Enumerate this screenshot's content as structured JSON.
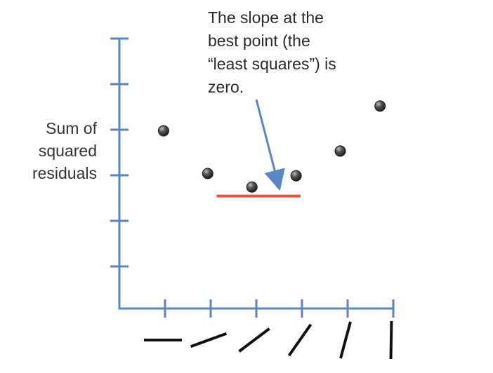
{
  "chart_data": {
    "type": "scatter",
    "title": "",
    "xlabel": "",
    "ylabel": [
      "Sum of",
      "squared",
      "residuals"
    ],
    "x_ticks": 6,
    "y_ticks": 6,
    "grid": false,
    "legend": "none",
    "xlim": [
      0,
      6.2
    ],
    "ylim": [
      0,
      6
    ],
    "points": [
      {
        "x": 1.0,
        "y": 3.95
      },
      {
        "x": 2.0,
        "y": 3.0
      },
      {
        "x": 3.0,
        "y": 2.7
      },
      {
        "x": 4.0,
        "y": 2.95
      },
      {
        "x": 5.0,
        "y": 3.5
      },
      {
        "x": 5.9,
        "y": 4.5
      }
    ],
    "slope_icons_deg": [
      0,
      20,
      37,
      55,
      75,
      89
    ],
    "best_line": {
      "x0": 2.2,
      "x1": 4.1,
      "y": 2.5
    },
    "annotation": {
      "lines": [
        "The slope at the",
        "best point (the",
        "“least squares”) is",
        "zero."
      ],
      "arrow_to": {
        "x": 3.6,
        "y": 2.75
      }
    },
    "colors": {
      "axis": "#5b86c4",
      "point": "#333333",
      "best_line": "#e8524a",
      "arrow": "#5b86c4",
      "slope_icon": "#111111",
      "text": "#333333"
    }
  }
}
